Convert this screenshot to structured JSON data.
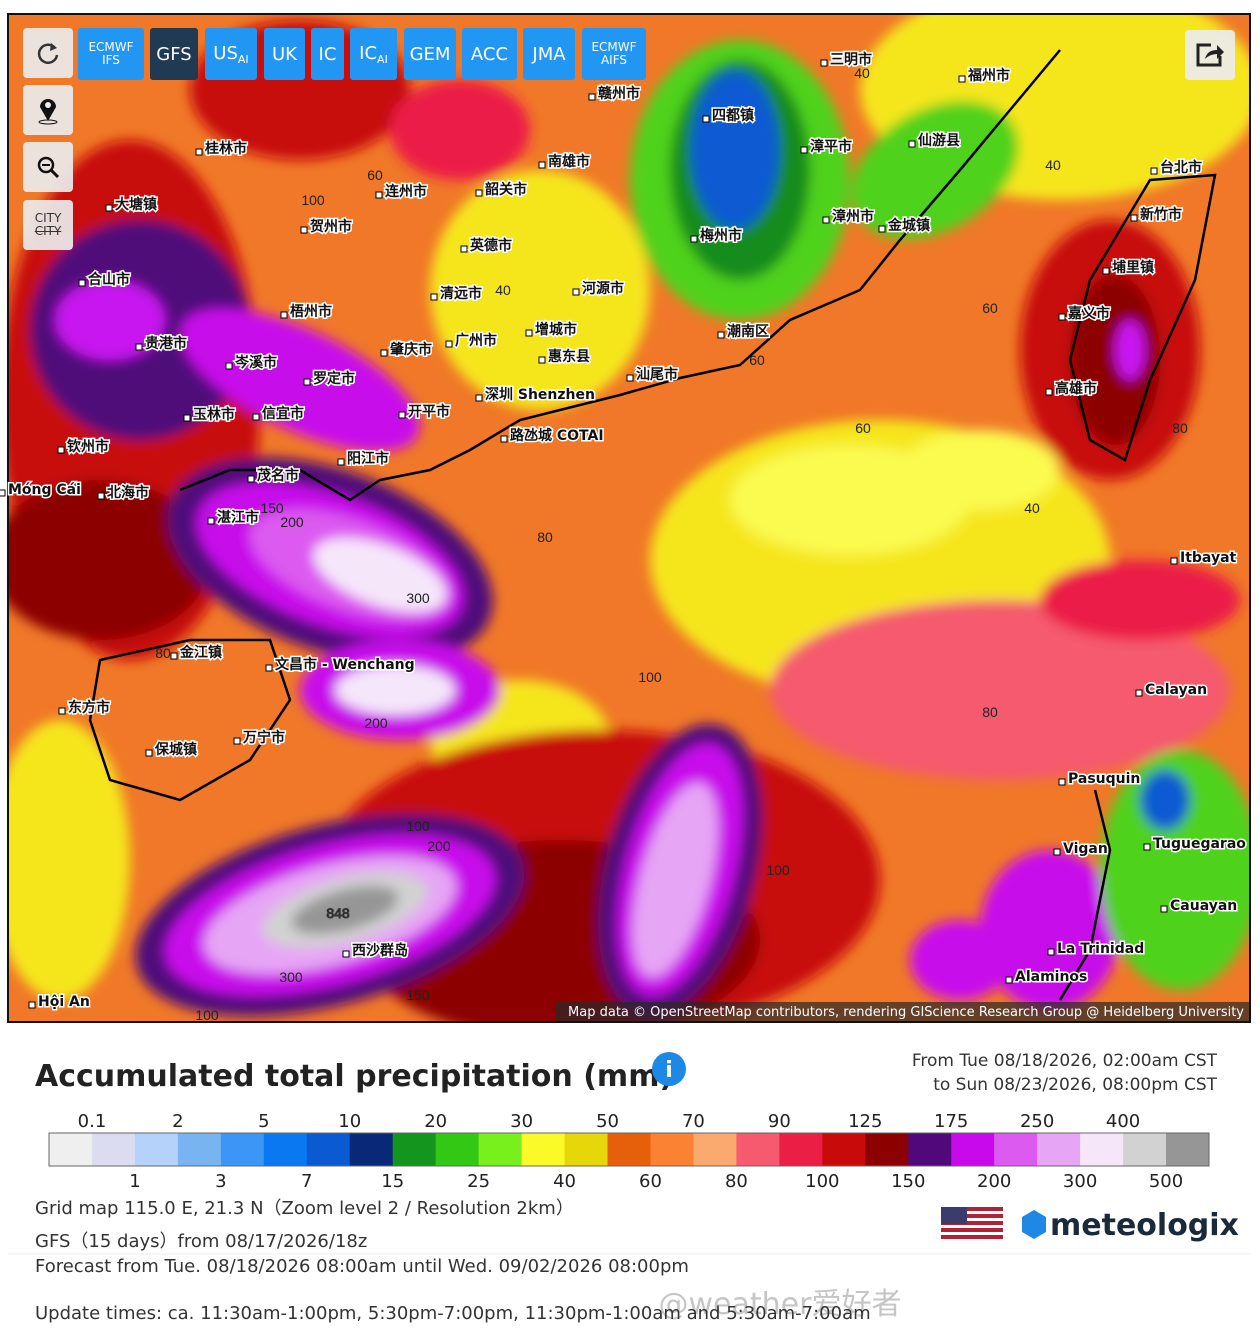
{
  "toolbar": {
    "models": [
      {
        "lines": [
          "ECMWF",
          "IFS"
        ]
      },
      {
        "label": "GFS"
      },
      {
        "label": "US",
        "subscript": "AI"
      },
      {
        "label": "UK"
      },
      {
        "label": "IC"
      },
      {
        "label": "IC",
        "subscript": "AI"
      },
      {
        "label": "GEM"
      },
      {
        "label": "ACC"
      },
      {
        "label": "JMA"
      },
      {
        "lines": [
          "ECMWF",
          "AIFS"
        ]
      }
    ],
    "selected_index": 1
  },
  "sidebar": {
    "city_toggle": [
      "CITY",
      "CITY"
    ]
  },
  "map": {
    "places": [
      "三明市",
      "福州市",
      "四都镇",
      "仙游县",
      "漳平市",
      "南雄市",
      "赣州市",
      "桂林市",
      "大塘镇",
      "连州市",
      "韶关市",
      "贺州市",
      "英德市",
      "河源市",
      "梅州市",
      "漳州市",
      "金城镇",
      "清远市",
      "合山市",
      "梧州市",
      "增城市",
      "广州市",
      "肇庆市",
      "惠东县",
      "潮南区",
      "汕尾市",
      "贵港市",
      "岑溪市",
      "罗定市",
      "玉林市",
      "信宜市",
      "开平市",
      "深圳 Shenzhen",
      "路氹城 COTAI",
      "钦州市",
      "阳江市",
      "茂名市",
      "北海市",
      "湛江市",
      "Móng Cái",
      "金江镇",
      "文昌市 - Wenchang",
      "东方市",
      "万宁市",
      "保城镇",
      "西沙群岛",
      "Hội An",
      "台北市",
      "新竹市",
      "埔里镇",
      "嘉义市",
      "高雄市",
      "Itbayat",
      "Calayan",
      "Pasuquin",
      "Vigan",
      "Tuguegarao",
      "Cauayan",
      "La Trinidad",
      "Alaminos"
    ],
    "contours": [
      40,
      40,
      40,
      60,
      100,
      60,
      60,
      60,
      80,
      40,
      80,
      150,
      200,
      300,
      80,
      200,
      100,
      80,
      100,
      200,
      848,
      300,
      150,
      100,
      100
    ],
    "attribution": "Map data © OpenStreetMap contributors, rendering GIScience Research Group @ Heidelberg University"
  },
  "legend": {
    "title": "Accumulated total precipitation (mm)",
    "period": [
      "From Tue 08/18/2026, 02:00am CST",
      "to Sun 08/23/2026, 08:00pm CST"
    ],
    "colors": [
      "#efefef",
      "#dcdcf0",
      "#b4d2fa",
      "#78b4f0",
      "#3c96f5",
      "#0a78f0",
      "#0a5ad2",
      "#0a2878",
      "#14961e",
      "#32c814",
      "#78f01e",
      "#fafa28",
      "#e6d70a",
      "#e65f0a",
      "#fa8232",
      "#faaa6e",
      "#f55a6e",
      "#eb1e46",
      "#c80a0a",
      "#8c0000",
      "#50087a",
      "#c80aeb",
      "#dc5af0",
      "#e6a5f5",
      "#f5e6fa",
      "#d2d2d2",
      "#969696"
    ],
    "ticks": [
      0.1,
      1,
      2,
      3,
      5,
      7,
      10,
      15,
      20,
      25,
      30,
      40,
      50,
      60,
      70,
      80,
      90,
      100,
      125,
      150,
      175,
      200,
      250,
      300,
      400,
      500
    ]
  },
  "info": {
    "grid": "Grid map 115.0 E, 21.3 N（Zoom level 2 / Resolution 2km）",
    "model_run": "GFS（15 days）from 08/17/2026/18z",
    "brand": "meteologix",
    "forecast": "Forecast from Tue. 08/18/2026 08:00am until Wed. 09/02/2026 08:00pm",
    "update_times": "Update times: ca. 11:30am-1:00pm, 5:30pm-7:00pm, 11:30pm-1:00am and 5:30am-7:00am",
    "watermark": "@weather爱好者"
  }
}
